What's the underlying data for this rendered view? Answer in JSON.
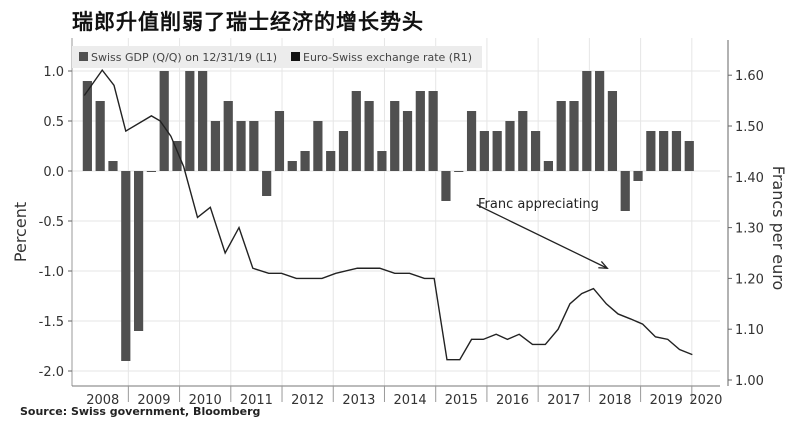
{
  "title": "瑞郎升值削弱了瑞士经济的增长势头",
  "source": "Source: Swiss government, Bloomberg",
  "chart_data": {
    "type": "bar+line",
    "title": "瑞郎升值削弱了瑞士经济的增长势头",
    "legend": [
      "Swiss GDP (Q/Q) on 12/31/19 (L1)",
      "Euro-Swiss exchange rate (R1)"
    ],
    "legend_placement": "top-left",
    "ylabel_left": "Percent",
    "ylabel_right": "Francs per euro",
    "ylim_left": [
      -2.2,
      1.35
    ],
    "ylim_right": [
      0.96,
      1.66
    ],
    "xlim": [
      2007.9,
      2020.55
    ],
    "left_ticks": [
      "1.0",
      "0.5",
      "0.0",
      "-0.5",
      "-1.0",
      "-1.5",
      "-2.0"
    ],
    "right_ticks": [
      "1.60",
      "1.50",
      "1.40",
      "1.30",
      "1.20",
      "1.10",
      "1.00"
    ],
    "x_ticks": [
      "2008",
      "2009",
      "2010",
      "2011",
      "2012",
      "2013",
      "2014",
      "2015",
      "2016",
      "2017",
      "2018",
      "2019",
      "2020"
    ],
    "colors": {
      "bars": "#505050",
      "line": "#222222",
      "grid": "#e6e6e6"
    },
    "gdp_series": {
      "name": "Swiss GDP (Q/Q) on 12/31/19 (L1)",
      "first_quarter_year": 2008.2,
      "values": [
        0.9,
        0.7,
        0.1,
        -1.9,
        -1.6,
        0.0,
        1.0,
        0.3,
        1.0,
        1.0,
        0.5,
        0.7,
        0.5,
        0.5,
        -0.25,
        0.6,
        0.1,
        0.2,
        0.5,
        0.2,
        0.4,
        0.8,
        0.7,
        0.2,
        0.7,
        0.6,
        0.8,
        0.8,
        -0.3,
        0.0,
        0.6,
        0.4,
        0.4,
        0.5,
        0.6,
        0.4,
        0.1,
        0.7,
        0.7,
        1.0,
        1.0,
        0.8,
        -0.4,
        -0.1,
        0.4,
        0.4,
        0.4,
        0.3
      ]
    },
    "fx_series": {
      "name": "Euro-Swiss exchange rate (R1)",
      "x": [
        2008.14,
        2008.49,
        2008.72,
        2008.95,
        2009.45,
        2009.62,
        2009.83,
        2010.08,
        2010.35,
        2010.6,
        2010.89,
        2011.16,
        2011.43,
        2011.74,
        2011.99,
        2012.28,
        2012.51,
        2012.78,
        2013.05,
        2013.47,
        2013.66,
        2013.91,
        2014.2,
        2014.49,
        2014.78,
        2014.97,
        2015.22,
        2015.47,
        2015.7,
        2015.93,
        2016.18,
        2016.4,
        2016.63,
        2016.89,
        2017.14,
        2017.39,
        2017.62,
        2017.85,
        2018.08,
        2018.33,
        2018.56,
        2018.81,
        2019.04,
        2019.29,
        2019.53,
        2019.76,
        2020.01
      ],
      "y": [
        1.56,
        1.61,
        1.58,
        1.49,
        1.52,
        1.51,
        1.48,
        1.42,
        1.32,
        1.34,
        1.25,
        1.3,
        1.22,
        1.21,
        1.21,
        1.2,
        1.2,
        1.2,
        1.21,
        1.22,
        1.22,
        1.22,
        1.21,
        1.21,
        1.2,
        1.2,
        1.04,
        1.04,
        1.08,
        1.08,
        1.09,
        1.08,
        1.09,
        1.07,
        1.07,
        1.1,
        1.15,
        1.17,
        1.18,
        1.15,
        1.13,
        1.12,
        1.11,
        1.085,
        1.08,
        1.06,
        1.05
      ]
    },
    "annotation": {
      "text": "Franc appreciating",
      "arrow_from": [
        2015.8,
        1.345
      ],
      "arrow_to": [
        2018.35,
        1.22
      ]
    }
  }
}
